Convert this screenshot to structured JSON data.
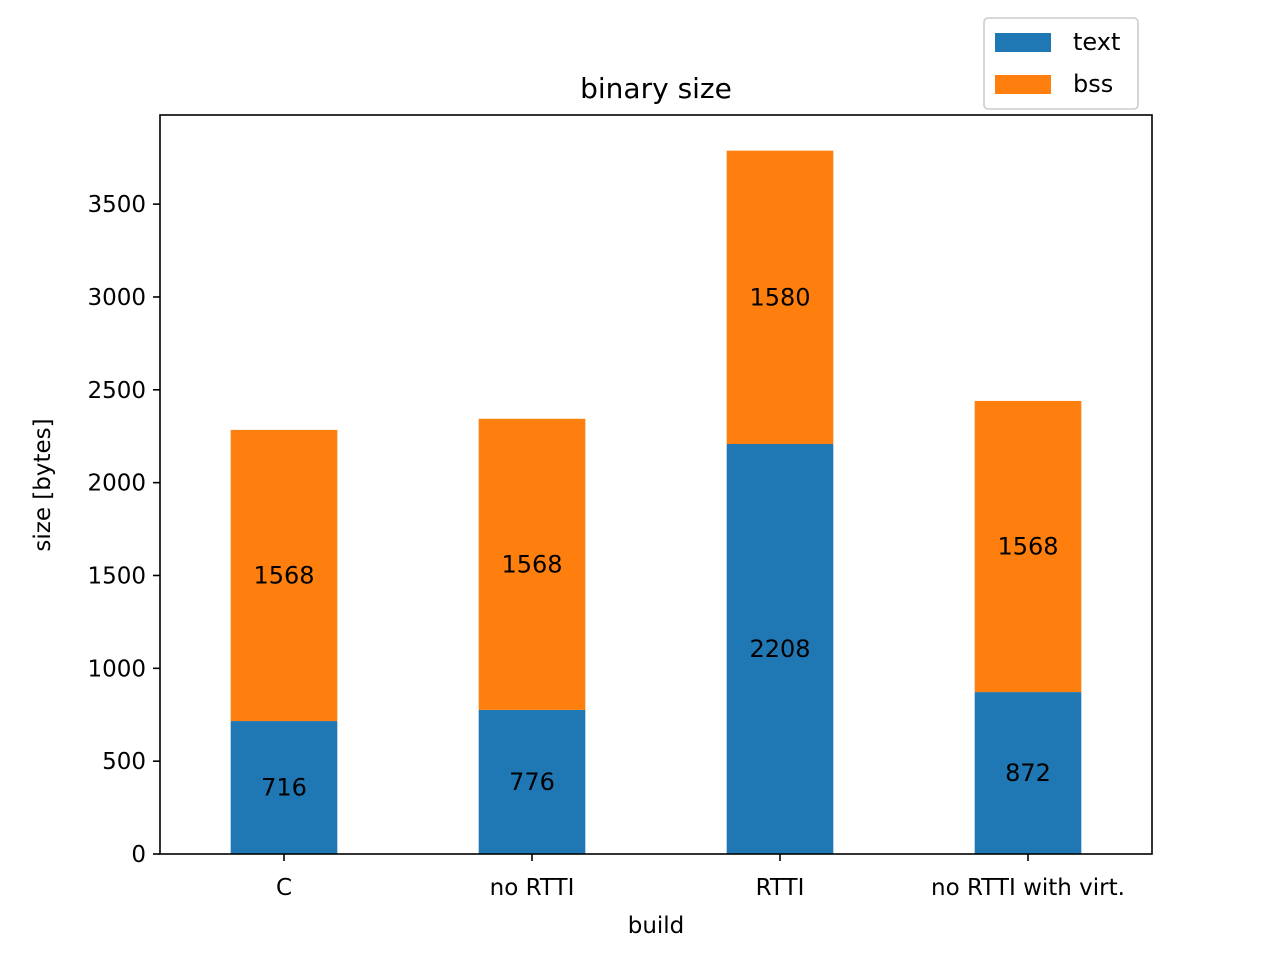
{
  "chart_data": {
    "type": "bar",
    "stacked": true,
    "title": "binary size",
    "xlabel": "build",
    "ylabel": "size [bytes]",
    "categories": [
      "C",
      "no RTTI",
      "RTTI",
      "no RTTI with virt."
    ],
    "series": [
      {
        "name": "text",
        "values": [
          716,
          776,
          2208,
          872
        ],
        "color": "#1f77b4"
      },
      {
        "name": "bss",
        "values": [
          1568,
          1568,
          1580,
          1568
        ],
        "color": "#ff7f0e"
      }
    ],
    "ylim": [
      0,
      3980
    ],
    "yticks": [
      0,
      500,
      1000,
      1500,
      2000,
      2500,
      3000,
      3500
    ],
    "grid": false,
    "legend_position": "top-right"
  }
}
